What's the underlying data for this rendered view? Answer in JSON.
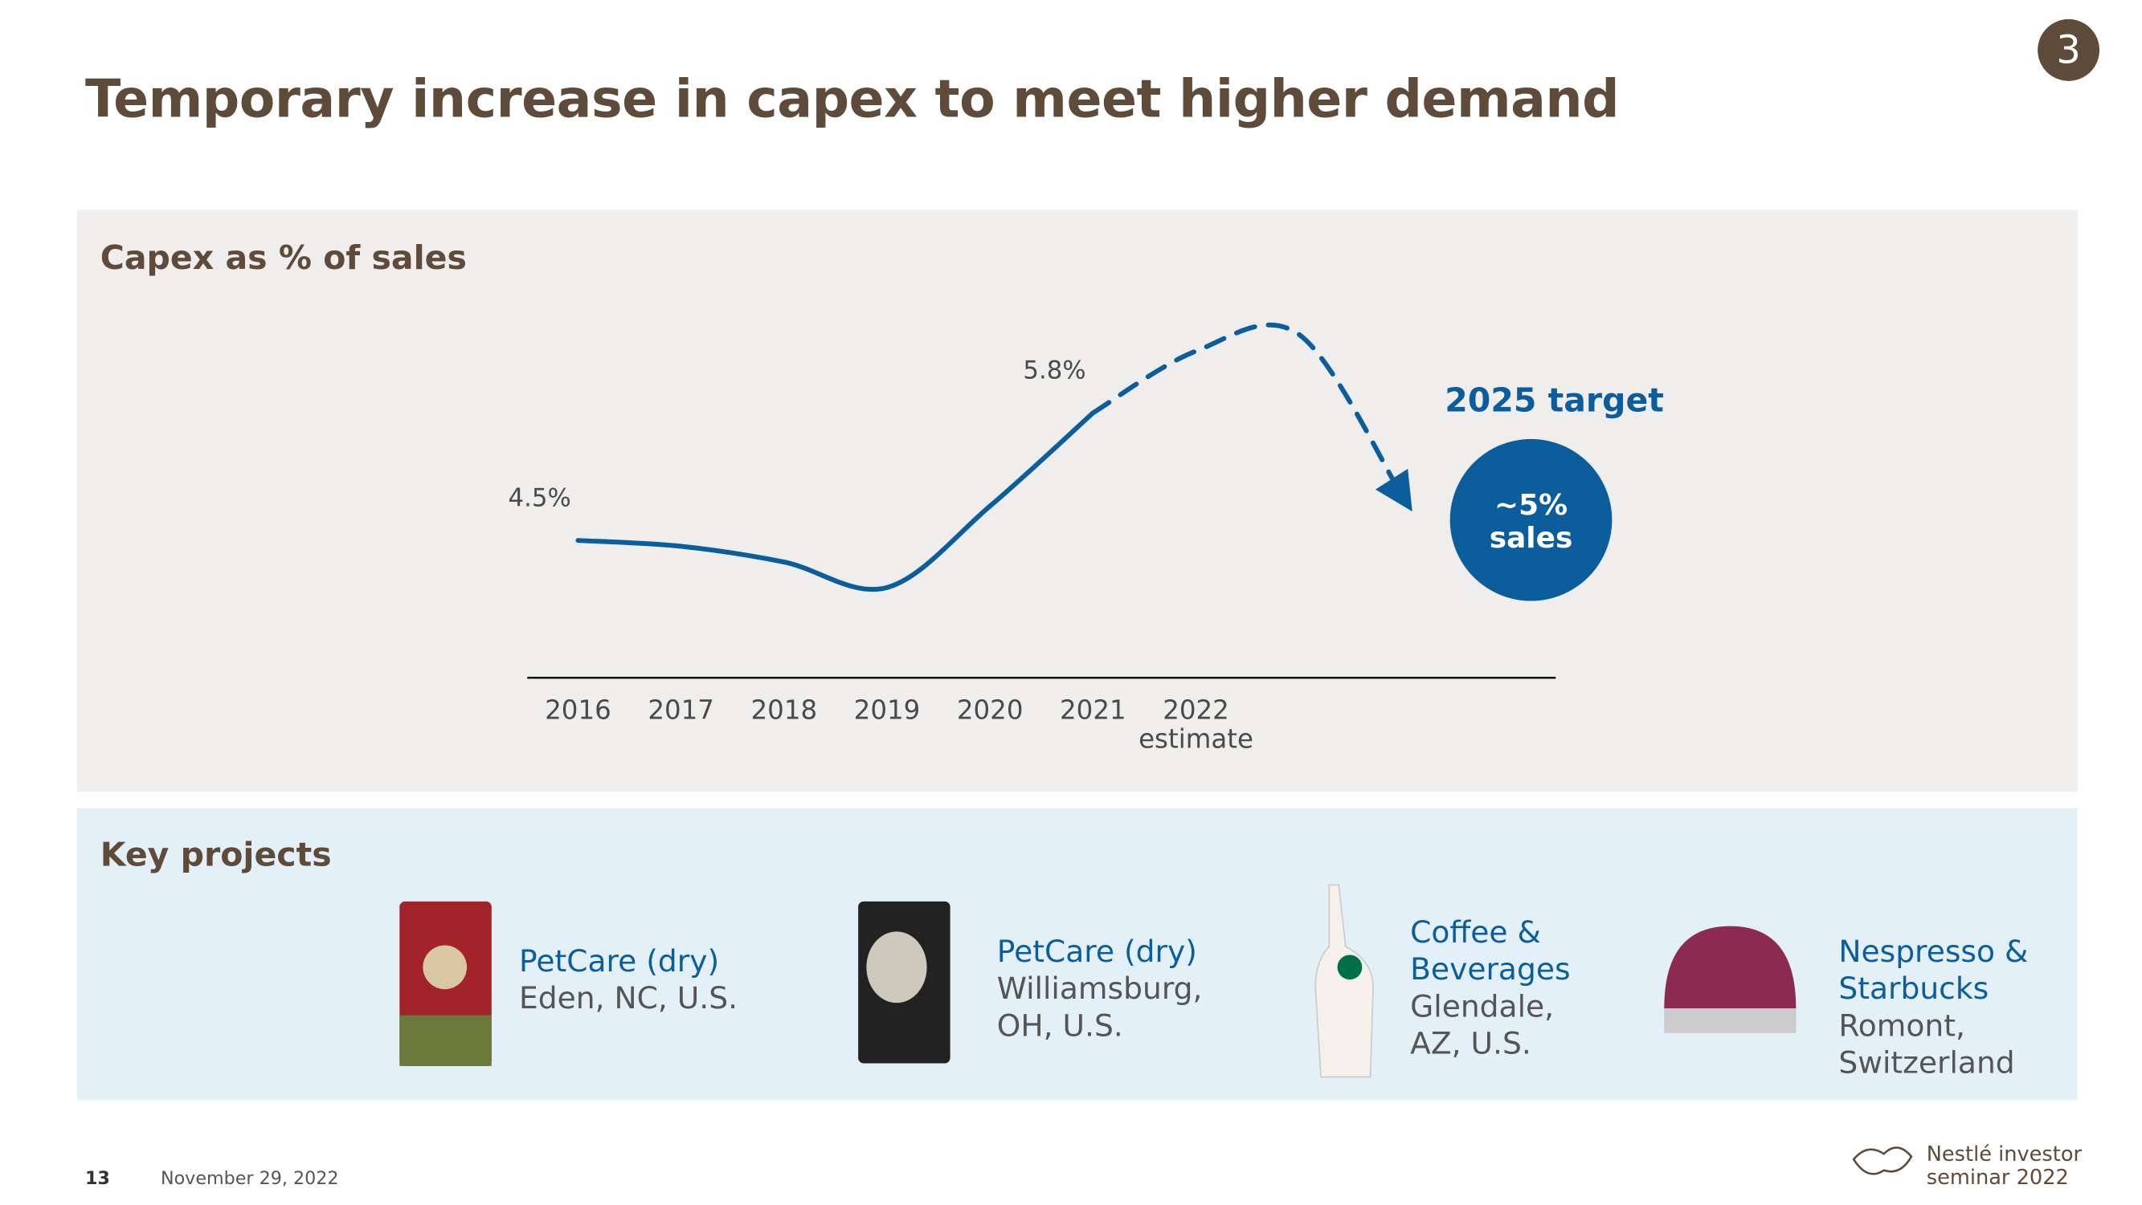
{
  "header": {
    "title": "Temporary increase in capex to meet higher demand",
    "badge": "3"
  },
  "chart_data": {
    "type": "line",
    "title": "Capex as % of sales",
    "categories": [
      "2016",
      "2017",
      "2018",
      "2019",
      "2020",
      "2021",
      "2022 estimate",
      null,
      null
    ],
    "series": [
      {
        "color": "#0b5d9c",
        "values": [
          4.5,
          4.44,
          4.28,
          4.02,
          4.85,
          5.8,
          null,
          null,
          null
        ],
        "value_labels": [
          "4.5%",
          null,
          null,
          null,
          null,
          "5.8%",
          null,
          null,
          null
        ]
      },
      {
        "color": "#0b5d9c",
        "dashed": true,
        "values": [
          null,
          null,
          null,
          null,
          null,
          5.8,
          6.43,
          6.6,
          4.96
        ]
      }
    ],
    "ylim": [
      3.1,
      7.1
    ],
    "target": {
      "title": "2025 target",
      "lines": [
        "~5%",
        "sales"
      ],
      "color": "#0b5d9c"
    }
  },
  "key_projects": {
    "title": "Key projects",
    "items": [
      {
        "title": "PetCare (dry)",
        "location": "Eden, NC, U.S."
      },
      {
        "title": "PetCare (dry)",
        "location": "Williamsburg, OH, U.S."
      },
      {
        "title": "Coffee & Beverages",
        "location": "Glendale, AZ, U.S."
      },
      {
        "title": "Nespresso & Starbucks",
        "location": "Romont, Switzerland"
      }
    ]
  },
  "footer": {
    "page": "13",
    "date": "November 29, 2022",
    "brand": "Nestlé investor seminar 2022"
  }
}
